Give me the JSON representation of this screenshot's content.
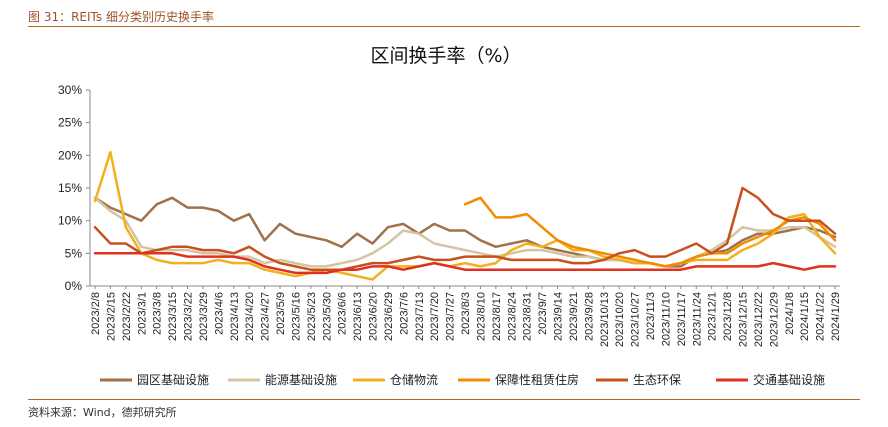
{
  "figure_caption": "图 31：REITs 细分类别历史换手率",
  "source": "资料来源：Wind，德邦研究所",
  "chart_data": {
    "type": "line",
    "title": "区间换手率（%）",
    "xlabel": "",
    "ylabel": "",
    "ylim": [
      0,
      30
    ],
    "yticks": [
      "0%",
      "5%",
      "10%",
      "15%",
      "20%",
      "25%",
      "30%"
    ],
    "grid": false,
    "legend_position": "bottom",
    "x_labels": [
      "2023/2/8",
      "2023/2/15",
      "2023/2/22",
      "2023/3/1",
      "2023/3/8",
      "2023/3/15",
      "2023/3/22",
      "2023/3/29",
      "2023/4/6",
      "2023/4/13",
      "2023/4/20",
      "2023/4/27",
      "2023/5/9",
      "2023/5/16",
      "2023/5/23",
      "2023/5/30",
      "2023/6/6",
      "2023/6/13",
      "2023/6/20",
      "2023/6/29",
      "2023/7/6",
      "2023/7/13",
      "2023/7/20",
      "2023/7/27",
      "2023/8/3",
      "2023/8/10",
      "2023/8/17",
      "2023/8/24",
      "2023/8/31",
      "2023/9/7",
      "2023/9/14",
      "2023/9/21",
      "2023/9/28",
      "2023/10/13",
      "2023/10/20",
      "2023/10/27",
      "2023/11/3",
      "2023/11/10",
      "2023/11/17",
      "2023/11/24",
      "2023/12/1",
      "2023/12/8",
      "2023/12/15",
      "2023/12/22",
      "2023/12/29",
      "2024/1/8",
      "2024/1/15",
      "2024/1/22",
      "2024/1/29"
    ],
    "series": [
      {
        "name": "园区基础设施",
        "color": "#a0724a",
        "values": [
          13.5,
          12,
          11,
          10,
          12.5,
          13.5,
          12,
          12,
          11.5,
          10,
          11,
          7,
          9.5,
          8,
          7.5,
          7,
          6,
          8,
          6.5,
          9,
          9.5,
          8,
          9.5,
          8.5,
          8.5,
          7,
          6,
          6.5,
          7,
          6,
          5.5,
          5,
          4.5,
          4,
          4,
          3.5,
          3.5,
          3,
          3,
          4.5,
          5,
          5.5,
          7,
          8,
          8,
          8.5,
          9,
          8.5,
          7.5
        ]
      },
      {
        "name": "能源基础设施",
        "color": "#d5c4a1",
        "values": [
          13.5,
          11.5,
          10,
          6,
          5.5,
          5.5,
          5.5,
          5,
          5,
          4.5,
          4.5,
          3.5,
          4,
          3.5,
          3,
          3,
          3.5,
          4,
          5,
          6.5,
          8.5,
          8,
          6.5,
          6,
          5.5,
          5,
          4.5,
          5,
          5.5,
          5.5,
          5,
          4.5,
          4.5,
          4,
          4,
          3.5,
          3.5,
          3,
          3.5,
          4.5,
          5.5,
          7,
          9,
          8.5,
          8.5,
          9,
          9,
          7.5,
          6
        ]
      },
      {
        "name": "仓储物流",
        "color": "#f2b01e",
        "values": [
          13,
          20.5,
          9,
          5,
          4,
          3.5,
          3.5,
          3.5,
          4,
          3.5,
          3.5,
          2.5,
          2,
          1.5,
          2,
          2.5,
          2,
          1.5,
          1,
          3,
          3,
          3,
          3.5,
          3,
          3.5,
          3,
          3.5,
          5.5,
          6.5,
          6,
          7,
          5.5,
          5.5,
          4.5,
          4,
          3.5,
          3.5,
          3,
          3.5,
          4,
          4,
          4,
          5.5,
          6.5,
          8,
          10.5,
          11,
          7.5,
          5
        ]
      },
      {
        "name": "保障性租赁住房",
        "color": "#f08c00",
        "values": [
          null,
          null,
          null,
          null,
          null,
          null,
          null,
          null,
          null,
          null,
          null,
          null,
          null,
          null,
          null,
          null,
          null,
          null,
          null,
          null,
          null,
          null,
          null,
          null,
          12.5,
          13.5,
          10.5,
          10.5,
          11,
          9,
          7,
          6,
          5.5,
          5,
          4.5,
          4,
          3.5,
          3,
          3.5,
          4.5,
          5,
          5,
          6.5,
          7.5,
          8.5,
          10,
          10.5,
          9.5,
          7
        ]
      },
      {
        "name": "生态环保",
        "color": "#c8501e",
        "values": [
          9,
          6.5,
          6.5,
          5,
          5.5,
          6,
          6,
          5.5,
          5.5,
          5,
          6,
          4.5,
          3.5,
          3,
          2.5,
          2.5,
          2.5,
          3,
          3.5,
          3.5,
          4,
          4.5,
          4,
          4,
          4.5,
          4.5,
          4.5,
          4,
          4,
          4,
          4,
          3.5,
          3.5,
          4,
          5,
          5.5,
          4.5,
          4.5,
          5.5,
          6.5,
          5,
          6.5,
          15,
          13.5,
          11,
          10,
          10,
          10,
          8
        ]
      },
      {
        "name": "交通基础设施",
        "color": "#e0301e",
        "values": [
          5,
          5,
          5,
          5,
          5,
          5,
          4.5,
          4.5,
          4.5,
          4.5,
          4,
          3,
          2.5,
          2,
          2,
          2,
          2.5,
          2.5,
          3,
          3,
          2.5,
          3,
          3.5,
          3,
          2.5,
          2.5,
          2.5,
          2.5,
          2.5,
          2.5,
          2.5,
          2.5,
          2.5,
          2.5,
          2.5,
          2.5,
          2.5,
          2.5,
          2.5,
          3,
          3,
          3,
          3,
          3,
          3.5,
          3,
          2.5,
          3,
          3
        ]
      }
    ]
  }
}
